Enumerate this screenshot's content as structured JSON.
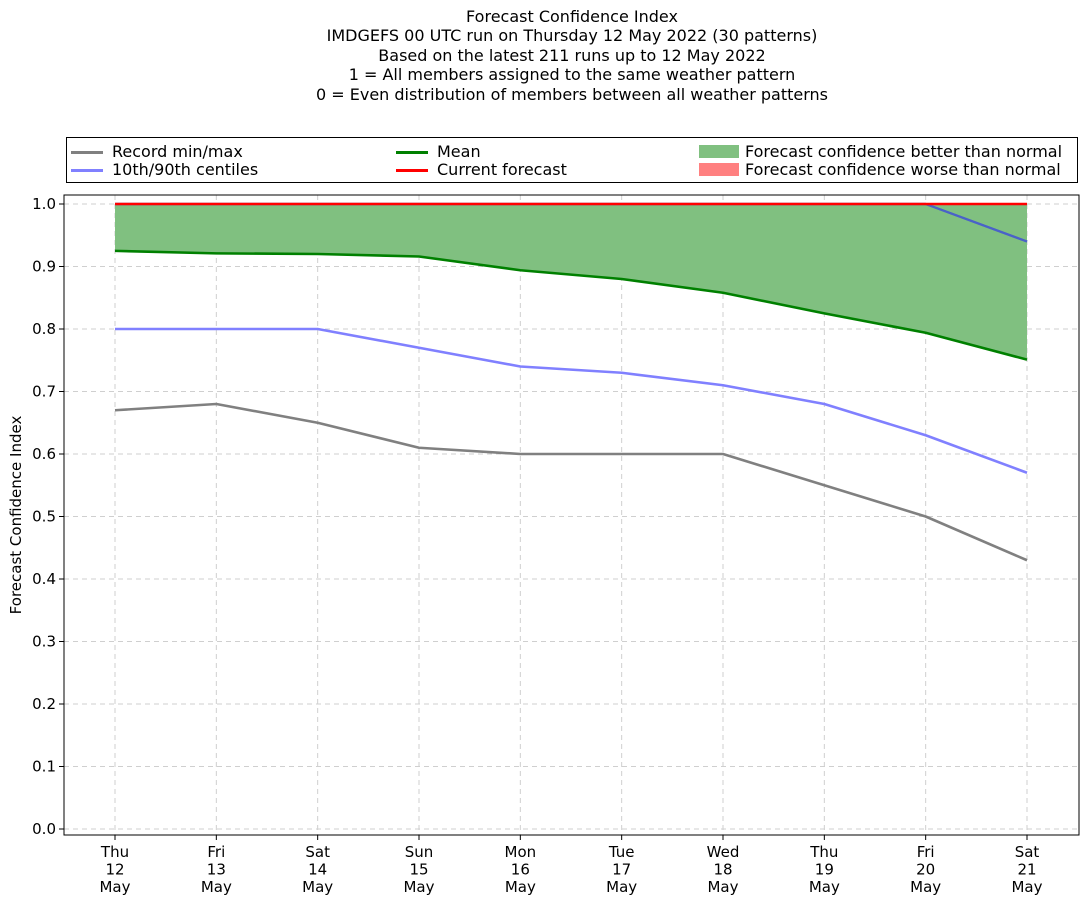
{
  "chart_data": {
    "type": "line",
    "title_lines": [
      "Forecast Confidence Index",
      "IMDGEFS 00 UTC run on Thursday 12 May 2022 (30 patterns)",
      "Based on the latest 211 runs up to 12 May 2022",
      "1 = All members assigned to the same weather pattern",
      "0 = Even distribution of members between all weather patterns"
    ],
    "ylabel": "Forecast Confidence Index",
    "xlabel": "",
    "ylim": [
      0.0,
      1.0
    ],
    "yticks": [
      "0.0",
      "0.1",
      "0.2",
      "0.3",
      "0.4",
      "0.5",
      "0.6",
      "0.7",
      "0.8",
      "0.9",
      "1.0"
    ],
    "grid": true,
    "legend_position": "top, above plot",
    "categories": [
      [
        "Thu",
        "12",
        "May"
      ],
      [
        "Fri",
        "13",
        "May"
      ],
      [
        "Sat",
        "14",
        "May"
      ],
      [
        "Sun",
        "15",
        "May"
      ],
      [
        "Mon",
        "16",
        "May"
      ],
      [
        "Tue",
        "17",
        "May"
      ],
      [
        "Wed",
        "18",
        "May"
      ],
      [
        "Thu",
        "19",
        "May"
      ],
      [
        "Fri",
        "20",
        "May"
      ],
      [
        "Sat",
        "21",
        "May"
      ]
    ],
    "series": [
      {
        "name": "Record min/max",
        "key": "record_min",
        "color": "#808080",
        "values": [
          0.67,
          0.68,
          0.65,
          0.61,
          0.6,
          0.6,
          0.6,
          0.55,
          0.5,
          0.43
        ]
      },
      {
        "key": "record_max",
        "color": "#808080",
        "values": [
          1.0,
          1.0,
          1.0,
          1.0,
          1.0,
          1.0,
          1.0,
          1.0,
          1.0,
          0.94
        ]
      },
      {
        "name": "10th/90th centiles",
        "key": "p10",
        "color": "#8080ff",
        "values": [
          0.8,
          0.8,
          0.8,
          0.77,
          0.74,
          0.73,
          0.71,
          0.68,
          0.63,
          0.57
        ]
      },
      {
        "key": "p90",
        "color": "#8080ff",
        "values": [
          1.0,
          1.0,
          1.0,
          1.0,
          1.0,
          1.0,
          1.0,
          1.0,
          1.0,
          0.94
        ]
      },
      {
        "name": "Mean",
        "key": "mean",
        "color": "#008000",
        "values": [
          0.925,
          0.921,
          0.92,
          0.916,
          0.894,
          0.88,
          0.858,
          0.825,
          0.794,
          0.751
        ]
      },
      {
        "name": "Current forecast",
        "key": "current",
        "color": "#ff0000",
        "values": [
          1.0,
          1.0,
          1.0,
          1.0,
          1.0,
          1.0,
          1.0,
          1.0,
          1.0,
          1.0
        ]
      }
    ],
    "fills": [
      {
        "name": "Forecast confidence better than normal",
        "color": "#80c080",
        "between": [
          "mean",
          "current"
        ]
      },
      {
        "name": "Forecast confidence worse than normal",
        "color": "#ff8080",
        "between": [
          "current",
          "mean"
        ]
      }
    ]
  }
}
